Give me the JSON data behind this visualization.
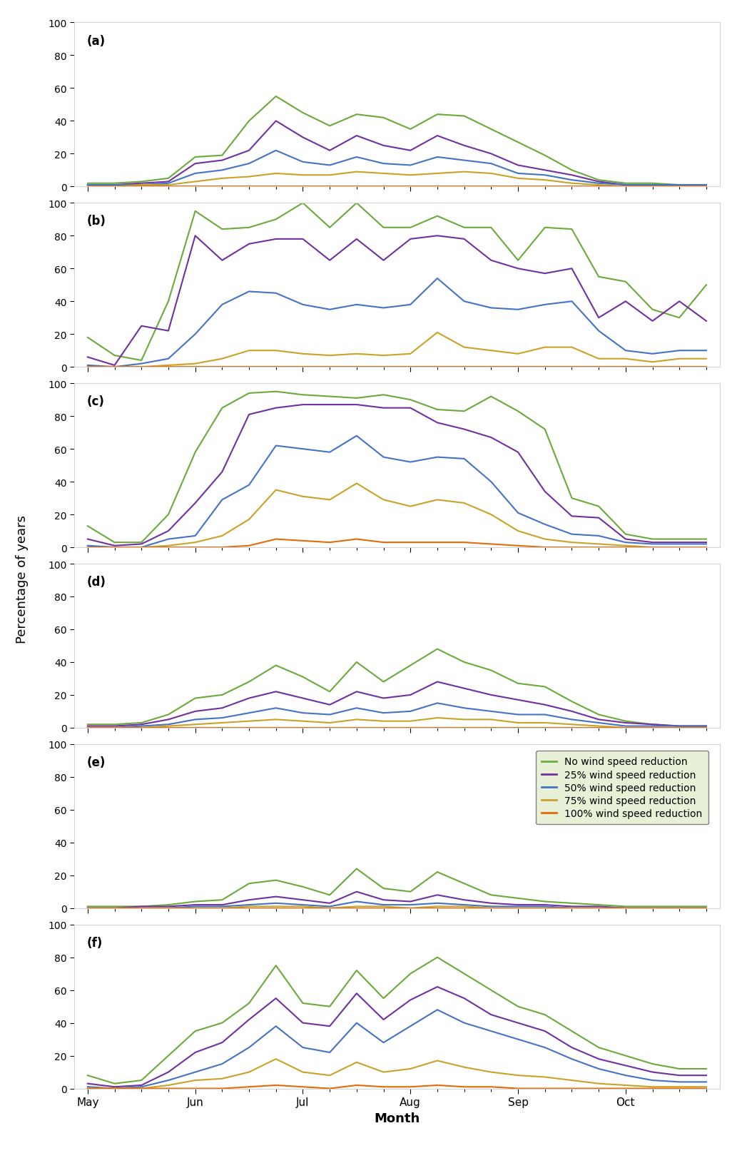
{
  "x_labels": [
    "May",
    "Jun",
    "Jul",
    "Aug",
    "Sep",
    "Oct"
  ],
  "n_points": 24,
  "colors": {
    "green": "#6aaa3a",
    "purple": "#7030a0",
    "blue": "#4472c4",
    "yellow": "#c9a227",
    "orange": "#e36c09"
  },
  "legend_labels": [
    "No wind speed reduction",
    "25% wind speed reduction",
    "50% wind speed reduction",
    "75% wind speed reduction",
    "100% wind speed reduction"
  ],
  "subplot_labels": [
    "(a)",
    "(b)",
    "(c)",
    "(d)",
    "(e)",
    "(f)"
  ],
  "panel_a": {
    "green": [
      2,
      2,
      3,
      5,
      18,
      19,
      40,
      55,
      45,
      37,
      44,
      42,
      35,
      44,
      43,
      35,
      27,
      19,
      10,
      4,
      2,
      2,
      1,
      1
    ],
    "purple": [
      1,
      1,
      2,
      3,
      14,
      16,
      22,
      40,
      30,
      22,
      31,
      25,
      22,
      31,
      25,
      20,
      13,
      10,
      7,
      3,
      1,
      1,
      1,
      1
    ],
    "blue": [
      1,
      1,
      1,
      2,
      8,
      10,
      14,
      22,
      15,
      13,
      18,
      14,
      13,
      18,
      16,
      14,
      8,
      7,
      4,
      2,
      1,
      1,
      1,
      1
    ],
    "yellow": [
      0,
      0,
      1,
      1,
      3,
      5,
      6,
      8,
      7,
      7,
      9,
      8,
      7,
      8,
      9,
      8,
      5,
      4,
      2,
      1,
      0,
      0,
      0,
      0
    ],
    "orange": [
      0,
      0,
      0,
      0,
      0,
      0,
      0,
      0,
      0,
      0,
      0,
      0,
      0,
      0,
      0,
      0,
      0,
      0,
      0,
      0,
      0,
      0,
      0,
      0
    ]
  },
  "panel_b": {
    "green": [
      18,
      7,
      4,
      40,
      95,
      84,
      85,
      90,
      100,
      85,
      100,
      85,
      85,
      92,
      85,
      85,
      65,
      85,
      84,
      55,
      52,
      35,
      30,
      50
    ],
    "purple": [
      6,
      1,
      25,
      22,
      80,
      65,
      75,
      78,
      78,
      65,
      78,
      65,
      78,
      80,
      78,
      65,
      60,
      57,
      60,
      30,
      40,
      28,
      40,
      28
    ],
    "blue": [
      1,
      0,
      2,
      5,
      20,
      38,
      46,
      45,
      38,
      35,
      38,
      36,
      38,
      54,
      40,
      36,
      35,
      38,
      40,
      22,
      10,
      8,
      10,
      10
    ],
    "yellow": [
      0,
      0,
      0,
      1,
      2,
      5,
      10,
      10,
      8,
      7,
      8,
      7,
      8,
      21,
      12,
      10,
      8,
      12,
      12,
      5,
      5,
      3,
      5,
      5
    ],
    "orange": [
      0,
      0,
      0,
      0,
      0,
      0,
      0,
      0,
      0,
      0,
      0,
      0,
      0,
      0,
      0,
      0,
      0,
      0,
      0,
      0,
      0,
      0,
      0,
      0
    ]
  },
  "panel_c": {
    "green": [
      13,
      3,
      3,
      20,
      58,
      85,
      94,
      95,
      93,
      92,
      91,
      93,
      90,
      84,
      83,
      92,
      83,
      72,
      30,
      25,
      8,
      5,
      5,
      5
    ],
    "purple": [
      5,
      1,
      2,
      10,
      27,
      46,
      81,
      85,
      87,
      87,
      87,
      85,
      85,
      76,
      72,
      67,
      58,
      34,
      19,
      18,
      5,
      3,
      3,
      3
    ],
    "blue": [
      1,
      0,
      0,
      5,
      7,
      29,
      38,
      62,
      60,
      58,
      68,
      55,
      52,
      55,
      54,
      40,
      21,
      14,
      8,
      7,
      3,
      2,
      2,
      2
    ],
    "yellow": [
      0,
      0,
      0,
      1,
      3,
      7,
      17,
      35,
      31,
      29,
      39,
      29,
      25,
      29,
      27,
      20,
      10,
      5,
      3,
      2,
      1,
      0,
      0,
      0
    ],
    "orange": [
      0,
      0,
      0,
      0,
      0,
      0,
      1,
      5,
      4,
      3,
      5,
      3,
      3,
      3,
      3,
      2,
      1,
      0,
      0,
      0,
      0,
      0,
      0,
      0
    ]
  },
  "panel_d": {
    "green": [
      2,
      2,
      3,
      8,
      18,
      20,
      28,
      38,
      31,
      22,
      40,
      28,
      38,
      48,
      40,
      35,
      27,
      25,
      16,
      8,
      4,
      2,
      1,
      1
    ],
    "purple": [
      1,
      1,
      2,
      5,
      10,
      12,
      18,
      22,
      18,
      14,
      22,
      18,
      20,
      28,
      24,
      20,
      17,
      14,
      10,
      5,
      3,
      2,
      1,
      1
    ],
    "blue": [
      0,
      0,
      1,
      2,
      5,
      6,
      9,
      12,
      9,
      8,
      12,
      9,
      10,
      15,
      12,
      10,
      8,
      8,
      5,
      3,
      1,
      1,
      1,
      1
    ],
    "yellow": [
      0,
      0,
      0,
      1,
      2,
      3,
      4,
      5,
      4,
      3,
      5,
      4,
      4,
      6,
      5,
      5,
      3,
      3,
      2,
      1,
      0,
      0,
      0,
      0
    ],
    "orange": [
      0,
      0,
      0,
      0,
      0,
      0,
      0,
      0,
      0,
      0,
      0,
      0,
      0,
      0,
      0,
      0,
      0,
      0,
      0,
      0,
      0,
      0,
      0,
      0
    ]
  },
  "panel_e": {
    "green": [
      1,
      1,
      1,
      2,
      4,
      5,
      15,
      17,
      13,
      8,
      24,
      12,
      10,
      22,
      15,
      8,
      6,
      4,
      3,
      2,
      1,
      1,
      1,
      1
    ],
    "purple": [
      0,
      0,
      1,
      1,
      2,
      2,
      5,
      7,
      5,
      3,
      10,
      5,
      4,
      8,
      5,
      3,
      2,
      2,
      1,
      1,
      0,
      0,
      0,
      0
    ],
    "blue": [
      0,
      0,
      0,
      0,
      1,
      1,
      2,
      3,
      2,
      1,
      4,
      2,
      2,
      3,
      2,
      1,
      1,
      1,
      0,
      0,
      0,
      0,
      0,
      0
    ],
    "yellow": [
      0,
      0,
      0,
      0,
      0,
      0,
      1,
      1,
      1,
      0,
      1,
      1,
      0,
      1,
      1,
      0,
      0,
      0,
      0,
      0,
      0,
      0,
      0,
      0
    ],
    "orange": [
      0,
      0,
      0,
      0,
      0,
      0,
      0,
      0,
      0,
      0,
      0,
      0,
      0,
      0,
      0,
      0,
      0,
      0,
      0,
      0,
      0,
      0,
      0,
      0
    ]
  },
  "panel_f": {
    "green": [
      8,
      3,
      5,
      20,
      35,
      40,
      52,
      75,
      52,
      50,
      72,
      55,
      70,
      80,
      70,
      60,
      50,
      45,
      35,
      25,
      20,
      15,
      12,
      12
    ],
    "purple": [
      3,
      1,
      2,
      10,
      22,
      28,
      42,
      55,
      40,
      38,
      58,
      42,
      54,
      62,
      55,
      45,
      40,
      35,
      25,
      18,
      14,
      10,
      8,
      8
    ],
    "blue": [
      1,
      0,
      1,
      5,
      10,
      15,
      25,
      38,
      25,
      22,
      40,
      28,
      38,
      48,
      40,
      35,
      30,
      25,
      18,
      12,
      8,
      5,
      4,
      4
    ],
    "yellow": [
      0,
      0,
      0,
      2,
      5,
      6,
      10,
      18,
      10,
      8,
      16,
      10,
      12,
      17,
      13,
      10,
      8,
      7,
      5,
      3,
      2,
      1,
      1,
      1
    ],
    "orange": [
      0,
      0,
      0,
      0,
      0,
      0,
      1,
      2,
      1,
      0,
      2,
      1,
      1,
      2,
      1,
      1,
      0,
      0,
      0,
      0,
      0,
      0,
      0,
      0
    ]
  },
  "legend_box_color": "#e8f0d8",
  "background_color": "#ffffff",
  "ylim": [
    0,
    100
  ],
  "ylabel": "Percentage of years",
  "xlabel": "Month"
}
